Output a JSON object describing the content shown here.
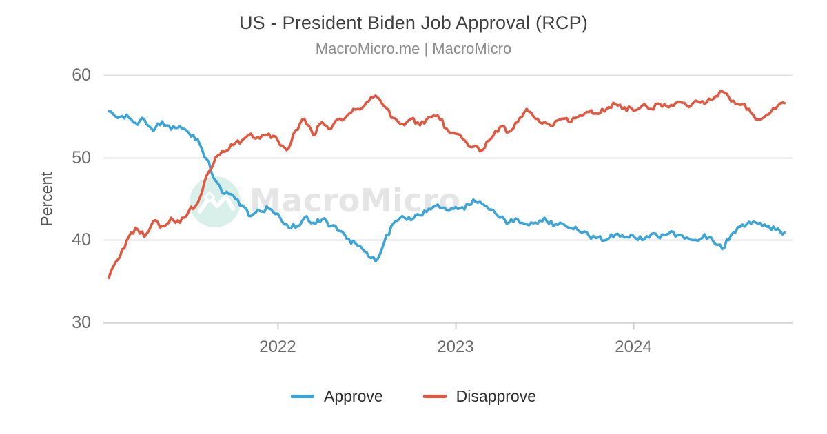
{
  "header": {
    "title": "US - President Biden Job Approval (RCP)",
    "subtitle": "MacroMicro.me | MacroMicro"
  },
  "watermark": {
    "text": "MacroMicro",
    "circle_color": "#d9f0ea",
    "logo_color": "#ffffff",
    "text_color": "#e5e5e5"
  },
  "axis": {
    "ylabel": "Percent",
    "grid_color": "#e2e2e2",
    "axis_line_color": "#d4d4d4",
    "tick_mark_color": "#cccccc",
    "tick_label_color": "#6b6b6b"
  },
  "legend": {
    "items": [
      {
        "label": "Approve",
        "color": "#3ba4d8"
      },
      {
        "label": "Disapprove",
        "color": "#e2573f"
      }
    ]
  },
  "chart_data": {
    "type": "line",
    "title": "US - President Biden Job Approval (RCP)",
    "subtitle": "MacroMicro.me | MacroMicro",
    "xlabel": "",
    "ylabel": "Percent",
    "x_ticks": [
      2022,
      2023,
      2024
    ],
    "y_ticks": [
      60,
      50,
      40,
      30
    ],
    "ylim": [
      30,
      61
    ],
    "xlim": [
      2021.0,
      2024.9
    ],
    "grid": "horizontal",
    "legend_position": "bottom",
    "noise_amplitude": 0.35,
    "x": [
      2021.05,
      2021.1,
      2021.15,
      2021.2,
      2021.25,
      2021.3,
      2021.35,
      2021.4,
      2021.45,
      2021.5,
      2021.55,
      2021.6,
      2021.65,
      2021.7,
      2021.75,
      2021.8,
      2021.85,
      2021.9,
      2021.95,
      2022.0,
      2022.05,
      2022.1,
      2022.15,
      2022.2,
      2022.25,
      2022.3,
      2022.35,
      2022.4,
      2022.45,
      2022.5,
      2022.55,
      2022.6,
      2022.65,
      2022.7,
      2022.75,
      2022.8,
      2022.85,
      2022.9,
      2022.95,
      2023.0,
      2023.05,
      2023.1,
      2023.15,
      2023.2,
      2023.25,
      2023.3,
      2023.35,
      2023.4,
      2023.45,
      2023.5,
      2023.55,
      2023.6,
      2023.65,
      2023.7,
      2023.75,
      2023.8,
      2023.85,
      2023.9,
      2023.95,
      2024.0,
      2024.05,
      2024.1,
      2024.15,
      2024.2,
      2024.25,
      2024.3,
      2024.35,
      2024.4,
      2024.45,
      2024.5,
      2024.55,
      2024.6,
      2024.65,
      2024.7,
      2024.75,
      2024.8,
      2024.85
    ],
    "series": [
      {
        "name": "Approve",
        "color": "#3ba4d8",
        "values": [
          55.6,
          54.8,
          55.2,
          54.2,
          54.6,
          53.2,
          54.4,
          53.4,
          53.8,
          53.0,
          52.2,
          49.8,
          47.2,
          45.6,
          45.4,
          44.2,
          42.9,
          43.5,
          43.8,
          43.2,
          41.9,
          41.5,
          42.7,
          42.1,
          42.5,
          41.7,
          41.1,
          40.1,
          39.3,
          38.5,
          37.4,
          39.8,
          42.0,
          42.9,
          42.4,
          43.0,
          43.8,
          44.3,
          43.6,
          44.0,
          43.7,
          44.9,
          44.4,
          43.7,
          42.7,
          42.1,
          42.5,
          41.9,
          42.1,
          42.7,
          41.7,
          42.0,
          41.5,
          41.0,
          40.5,
          40.3,
          40.0,
          40.7,
          40.3,
          40.5,
          40.0,
          40.7,
          40.2,
          40.8,
          40.6,
          40.3,
          40.0,
          40.7,
          39.8,
          38.9,
          40.6,
          41.6,
          42.2,
          42.0,
          41.6,
          41.2,
          40.9
        ]
      },
      {
        "name": "Disapprove",
        "color": "#e2573f",
        "values": [
          35.4,
          37.6,
          39.9,
          41.5,
          40.4,
          42.3,
          41.7,
          42.7,
          42.1,
          43.5,
          44.5,
          47.8,
          50.0,
          50.7,
          51.5,
          52.1,
          52.9,
          52.3,
          52.9,
          52.1,
          50.9,
          53.3,
          54.7,
          52.7,
          54.3,
          53.5,
          54.7,
          55.3,
          55.9,
          56.7,
          57.5,
          56.2,
          54.8,
          54.1,
          54.7,
          53.9,
          54.9,
          55.1,
          53.5,
          52.9,
          52.1,
          51.3,
          50.9,
          52.3,
          53.7,
          53.1,
          54.3,
          55.9,
          54.7,
          54.3,
          53.9,
          54.7,
          54.3,
          55.1,
          55.5,
          55.3,
          55.9,
          56.5,
          56.1,
          55.7,
          56.3,
          55.9,
          56.5,
          56.1,
          56.7,
          56.3,
          56.9,
          56.5,
          57.1,
          58.0,
          56.8,
          56.4,
          55.9,
          54.6,
          55.2,
          55.9,
          56.6
        ]
      }
    ]
  }
}
